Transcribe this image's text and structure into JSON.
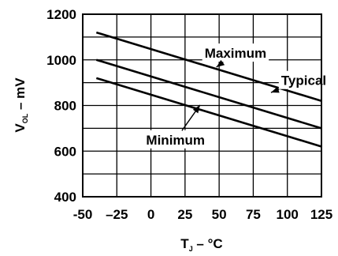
{
  "chart_data": {
    "type": "line",
    "title": "",
    "xlabel": {
      "main": "T",
      "sub": "J",
      "tail": " – °C"
    },
    "ylabel": {
      "main": "V",
      "sub": "OL",
      "tail": " – mV"
    },
    "xlim": [
      -50,
      125
    ],
    "ylim": [
      400,
      1200
    ],
    "x_ticks": [
      -50,
      -25,
      0,
      25,
      50,
      75,
      100,
      125
    ],
    "x_tick_labels": [
      "-50",
      "–25",
      "0",
      "25",
      "50",
      "75",
      "100",
      "125"
    ],
    "y_ticks": [
      400,
      600,
      800,
      1000,
      1200
    ],
    "y_tick_labels": [
      "400",
      "600",
      "800",
      "1000",
      "1200"
    ],
    "grid": true,
    "series": [
      {
        "name": "Maximum",
        "x": [
          -40,
          125
        ],
        "y": [
          1120,
          820
        ],
        "label_at": [
          62,
          1030
        ],
        "arrow_to": [
          48,
          968
        ]
      },
      {
        "name": "Typical",
        "x": [
          -40,
          125
        ],
        "y": [
          1000,
          700
        ],
        "label_at": [
          112,
          910
        ],
        "arrow_to": [
          88,
          857
        ]
      },
      {
        "name": "Minimum",
        "x": [
          -40,
          125
        ],
        "y": [
          920,
          620
        ],
        "label_at": [
          18,
          650
        ],
        "arrow_to": [
          36,
          802
        ]
      }
    ]
  }
}
